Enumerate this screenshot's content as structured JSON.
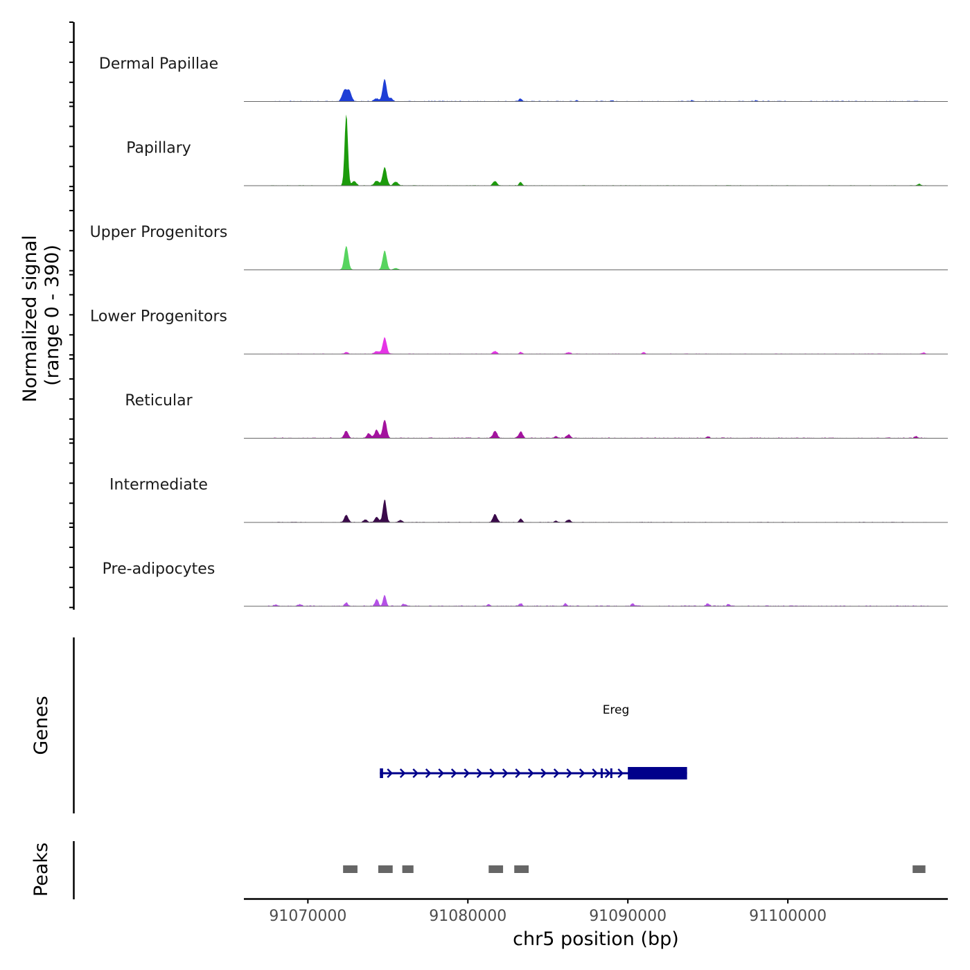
{
  "chart_data": {
    "type": "area",
    "region": "chr5",
    "xlim": [
      91066000,
      91110000
    ],
    "xlabel": "chr5 position (bp)",
    "x_ticks": [
      91070000,
      91080000,
      91090000,
      91100000
    ],
    "x_tick_labels": [
      "91070000",
      "91080000",
      "91090000",
      "91100000"
    ],
    "ylabel_line1": "Normalized signal",
    "ylabel_line2": "(range 0 - 390)",
    "ylim": [
      0,
      390
    ],
    "series": [
      {
        "name": "Dermal Papillae",
        "color": "#1f3fd6",
        "peaks": [
          [
            91072300,
            60,
            300
          ],
          [
            91072600,
            55,
            250
          ],
          [
            91074300,
            15,
            300
          ],
          [
            91074800,
            120,
            250
          ],
          [
            91075200,
            20,
            200
          ],
          [
            91083300,
            15,
            200
          ],
          [
            91086800,
            8,
            150
          ],
          [
            91089000,
            6,
            150
          ],
          [
            91094000,
            6,
            150
          ],
          [
            91098000,
            6,
            150
          ]
        ],
        "noise": 4
      },
      {
        "name": "Papillary",
        "color": "#1c9b0c",
        "peaks": [
          [
            91072400,
            390,
            200
          ],
          [
            91072900,
            25,
            250
          ],
          [
            91074300,
            25,
            300
          ],
          [
            91074800,
            100,
            250
          ],
          [
            91075500,
            20,
            300
          ],
          [
            91081700,
            25,
            250
          ],
          [
            91083300,
            18,
            200
          ],
          [
            91108200,
            10,
            200
          ]
        ],
        "noise": 3
      },
      {
        "name": "Upper Progenitors",
        "color": "#57d45f",
        "peaks": [
          [
            91072400,
            130,
            250
          ],
          [
            91074800,
            105,
            250
          ],
          [
            91075500,
            10,
            250
          ]
        ],
        "noise": 2
      },
      {
        "name": "Lower Progenitors",
        "color": "#e534e6",
        "peaks": [
          [
            91072400,
            10,
            250
          ],
          [
            91074300,
            15,
            300
          ],
          [
            91074800,
            90,
            250
          ],
          [
            91081700,
            15,
            250
          ],
          [
            91083300,
            10,
            200
          ],
          [
            91086300,
            10,
            250
          ],
          [
            91091000,
            8,
            200
          ],
          [
            91108500,
            8,
            200
          ]
        ],
        "noise": 3
      },
      {
        "name": "Reticular",
        "color": "#a3139e",
        "peaks": [
          [
            91072400,
            40,
            250
          ],
          [
            91073800,
            25,
            250
          ],
          [
            91074300,
            45,
            250
          ],
          [
            91074800,
            100,
            250
          ],
          [
            91081700,
            40,
            250
          ],
          [
            91083300,
            35,
            250
          ],
          [
            91085500,
            12,
            200
          ],
          [
            91086300,
            20,
            250
          ],
          [
            91095000,
            10,
            200
          ],
          [
            91108000,
            10,
            200
          ]
        ],
        "noise": 4
      },
      {
        "name": "Intermediate",
        "color": "#3a0a4a",
        "peaks": [
          [
            91072400,
            40,
            250
          ],
          [
            91073600,
            15,
            250
          ],
          [
            91074300,
            30,
            250
          ],
          [
            91074800,
            125,
            220
          ],
          [
            91075800,
            12,
            250
          ],
          [
            91081700,
            45,
            250
          ],
          [
            91083300,
            20,
            200
          ],
          [
            91085500,
            10,
            200
          ],
          [
            91086300,
            15,
            250
          ]
        ],
        "noise": 3
      },
      {
        "name": "Pre-adipocytes",
        "color": "#b450e6",
        "peaks": [
          [
            91068000,
            10,
            200
          ],
          [
            91069500,
            10,
            200
          ],
          [
            91072400,
            20,
            200
          ],
          [
            91074300,
            40,
            200
          ],
          [
            91074800,
            60,
            200
          ],
          [
            91076000,
            12,
            200
          ],
          [
            91081300,
            12,
            200
          ],
          [
            91083300,
            15,
            200
          ],
          [
            91086100,
            15,
            200
          ],
          [
            91090300,
            12,
            200
          ],
          [
            91095000,
            15,
            200
          ],
          [
            91096300,
            12,
            200
          ]
        ],
        "noise": 5
      }
    ],
    "genes": [
      {
        "name": "Ereg",
        "start": 91074500,
        "end": 91093700,
        "strand": "+",
        "exons": [
          [
            91074500,
            91074700
          ],
          [
            91088300,
            91088400
          ],
          [
            91088900,
            91089000
          ],
          [
            91090000,
            91093700
          ]
        ]
      }
    ],
    "genes_panel_label": "Genes",
    "peaks_panel_label": "Peaks",
    "peak_regions": [
      [
        91072200,
        91073100
      ],
      [
        91074400,
        91075300
      ],
      [
        91075900,
        91076600
      ],
      [
        91081300,
        91082200
      ],
      [
        91082900,
        91083800
      ],
      [
        91107800,
        91108600
      ]
    ],
    "colors": {
      "gene": "#00008b",
      "peak": "#666666",
      "baseline": "#666666",
      "axis": "#000000"
    }
  }
}
